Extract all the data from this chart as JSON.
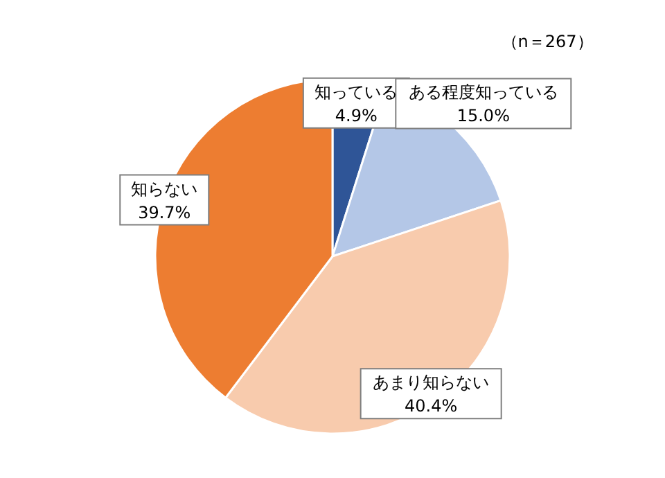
{
  "chart_data": {
    "type": "pie",
    "categories": [
      "知っている",
      "ある程度知っている",
      "あまり知らない",
      "知らない"
    ],
    "values": [
      4.9,
      15.0,
      40.4,
      39.7
    ],
    "value_labels": [
      "4.9%",
      "15.0%",
      "40.4%",
      "39.7%"
    ],
    "colors": [
      "#2f5597",
      "#b4c7e7",
      "#f8cbad",
      "#ed7d31"
    ],
    "annotations": [
      "（n＝267）"
    ]
  }
}
